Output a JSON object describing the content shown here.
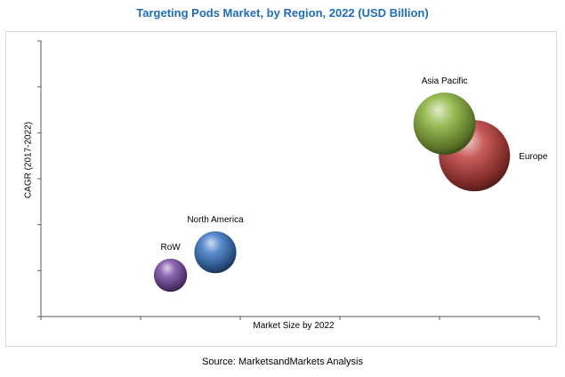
{
  "chart_data": {
    "type": "bubble",
    "title": "Targeting Pods Market, by Region, 2022 (USD Billion)",
    "xlabel": "Market Size by 2022",
    "ylabel": "CAGR (2017-2022)",
    "grid": false,
    "legend": "none",
    "xlim": [
      0,
      10
    ],
    "ylim": [
      0,
      6
    ],
    "series": [
      {
        "name": "RoW",
        "x": 2.6,
        "y": 0.9,
        "size": 1.0,
        "color": "#7b4fa6"
      },
      {
        "name": "North America",
        "x": 3.5,
        "y": 1.4,
        "size": 1.6,
        "color": "#3c78c4"
      },
      {
        "name": "Europe",
        "x": 8.7,
        "y": 3.5,
        "size": 4.6,
        "color": "#c0403d"
      },
      {
        "name": "Asia Pacific",
        "x": 8.1,
        "y": 4.2,
        "size": 3.5,
        "color": "#8ab43c"
      }
    ]
  },
  "source": "Source: MarketsandMarkets Analysis"
}
